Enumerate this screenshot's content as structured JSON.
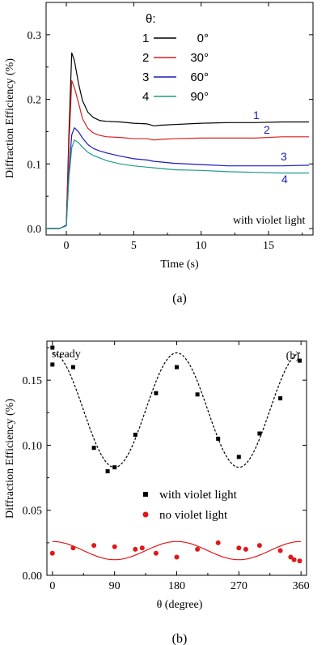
{
  "figure": {
    "caption_a": "(a)",
    "caption_b": "(b)"
  },
  "chart_data": [
    {
      "type": "line",
      "panel": "a",
      "xlabel": "Time (s)",
      "ylabel": "Diffraction Efficiency (%)",
      "xlim": [
        -1.5,
        18.3
      ],
      "ylim": [
        -0.01,
        0.35
      ],
      "xticks": [
        0,
        5,
        10,
        15
      ],
      "yticks": [
        0.0,
        0.1,
        0.2,
        0.3
      ],
      "xtick_labels": [
        "0",
        "5",
        "10",
        "15"
      ],
      "ytick_labels": [
        "0.0",
        "0.1",
        "0.2",
        "0.3"
      ],
      "annotation": "with violet light",
      "legend": {
        "title": "θ:",
        "placement": "top-right",
        "entries": [
          {
            "number": "1",
            "label": "0°"
          },
          {
            "number": "2",
            "label": "30°"
          },
          {
            "number": "3",
            "label": "60°"
          },
          {
            "number": "4",
            "label": "90°"
          }
        ]
      },
      "curve_labels": [
        "1",
        "2",
        "3",
        "4"
      ],
      "x": [
        -1.5,
        -0.5,
        0,
        0.2,
        0.4,
        0.6,
        0.9,
        1.2,
        1.6,
        2,
        2.5,
        3,
        4,
        5,
        6,
        6.5,
        7,
        8,
        10,
        12,
        14,
        16,
        18
      ],
      "series": [
        {
          "color": "#000000",
          "values": [
            0.0,
            0.0,
            0.005,
            0.15,
            0.272,
            0.26,
            0.225,
            0.198,
            0.18,
            0.172,
            0.167,
            0.166,
            0.165,
            0.163,
            0.162,
            0.159,
            0.16,
            0.161,
            0.163,
            0.164,
            0.164,
            0.165,
            0.165
          ]
        },
        {
          "color": "#d42020",
          "values": [
            0.0,
            0.0,
            0.005,
            0.13,
            0.229,
            0.218,
            0.195,
            0.17,
            0.155,
            0.148,
            0.144,
            0.142,
            0.141,
            0.139,
            0.139,
            0.137,
            0.138,
            0.139,
            0.14,
            0.14,
            0.14,
            0.142,
            0.142
          ]
        },
        {
          "color": "#1a1ac0",
          "values": [
            0.0,
            0.0,
            0.005,
            0.09,
            0.145,
            0.156,
            0.15,
            0.14,
            0.13,
            0.124,
            0.12,
            0.117,
            0.112,
            0.108,
            0.106,
            0.104,
            0.103,
            0.101,
            0.099,
            0.097,
            0.097,
            0.097,
            0.098
          ]
        },
        {
          "color": "#1e9a86",
          "values": [
            0.0,
            0.0,
            0.004,
            0.08,
            0.125,
            0.137,
            0.133,
            0.126,
            0.118,
            0.113,
            0.109,
            0.105,
            0.1,
            0.097,
            0.095,
            0.094,
            0.093,
            0.091,
            0.09,
            0.088,
            0.087,
            0.086,
            0.086
          ]
        }
      ]
    },
    {
      "type": "scatter",
      "panel": "b",
      "xlabel": "θ (degree)",
      "ylabel": "Diffraction Efficiency (%)",
      "xlim": [
        -8,
        368
      ],
      "ylim": [
        0.0,
        0.18
      ],
      "xticks": [
        0,
        90,
        180,
        270,
        360
      ],
      "yticks": [
        0.0,
        0.05,
        0.1,
        0.15
      ],
      "xtick_labels": [
        "0",
        "90",
        "180",
        "270",
        "360"
      ],
      "ytick_labels": [
        "0.00",
        "0.05",
        "0.10",
        "0.15"
      ],
      "annotation": "steady",
      "panel_label": "(b)",
      "legend": {
        "placement": "center-right",
        "entries": [
          {
            "label": "with violet light",
            "marker": "square",
            "color": "#000000"
          },
          {
            "label": "no violet light",
            "marker": "circle",
            "color": "#e01818"
          }
        ]
      },
      "series": [
        {
          "name": "with violet light",
          "marker": "square",
          "color": "#000000",
          "x": [
            0,
            0,
            30,
            60,
            80,
            90,
            120,
            150,
            180,
            210,
            240,
            270,
            300,
            330,
            358
          ],
          "y": [
            0.175,
            0.162,
            0.16,
            0.098,
            0.08,
            0.083,
            0.108,
            0.14,
            0.16,
            0.139,
            0.105,
            0.091,
            0.109,
            0.136,
            0.165
          ]
        },
        {
          "name": "no violet light",
          "marker": "circle",
          "color": "#e01818",
          "x": [
            0,
            30,
            60,
            90,
            120,
            130,
            150,
            180,
            210,
            240,
            270,
            280,
            300,
            330,
            345,
            350,
            358
          ],
          "y": [
            0.017,
            0.021,
            0.023,
            0.022,
            0.02,
            0.021,
            0.017,
            0.014,
            0.02,
            0.025,
            0.021,
            0.02,
            0.023,
            0.019,
            0.014,
            0.012,
            0.011
          ]
        }
      ],
      "fits": [
        {
          "for": "with violet light",
          "style": "dashed",
          "color": "#000000",
          "offset": 0.127,
          "amplitude": 0.044
        },
        {
          "for": "no violet light",
          "style": "solid",
          "color": "#e01818",
          "offset": 0.019,
          "amplitude": 0.007
        }
      ]
    }
  ]
}
